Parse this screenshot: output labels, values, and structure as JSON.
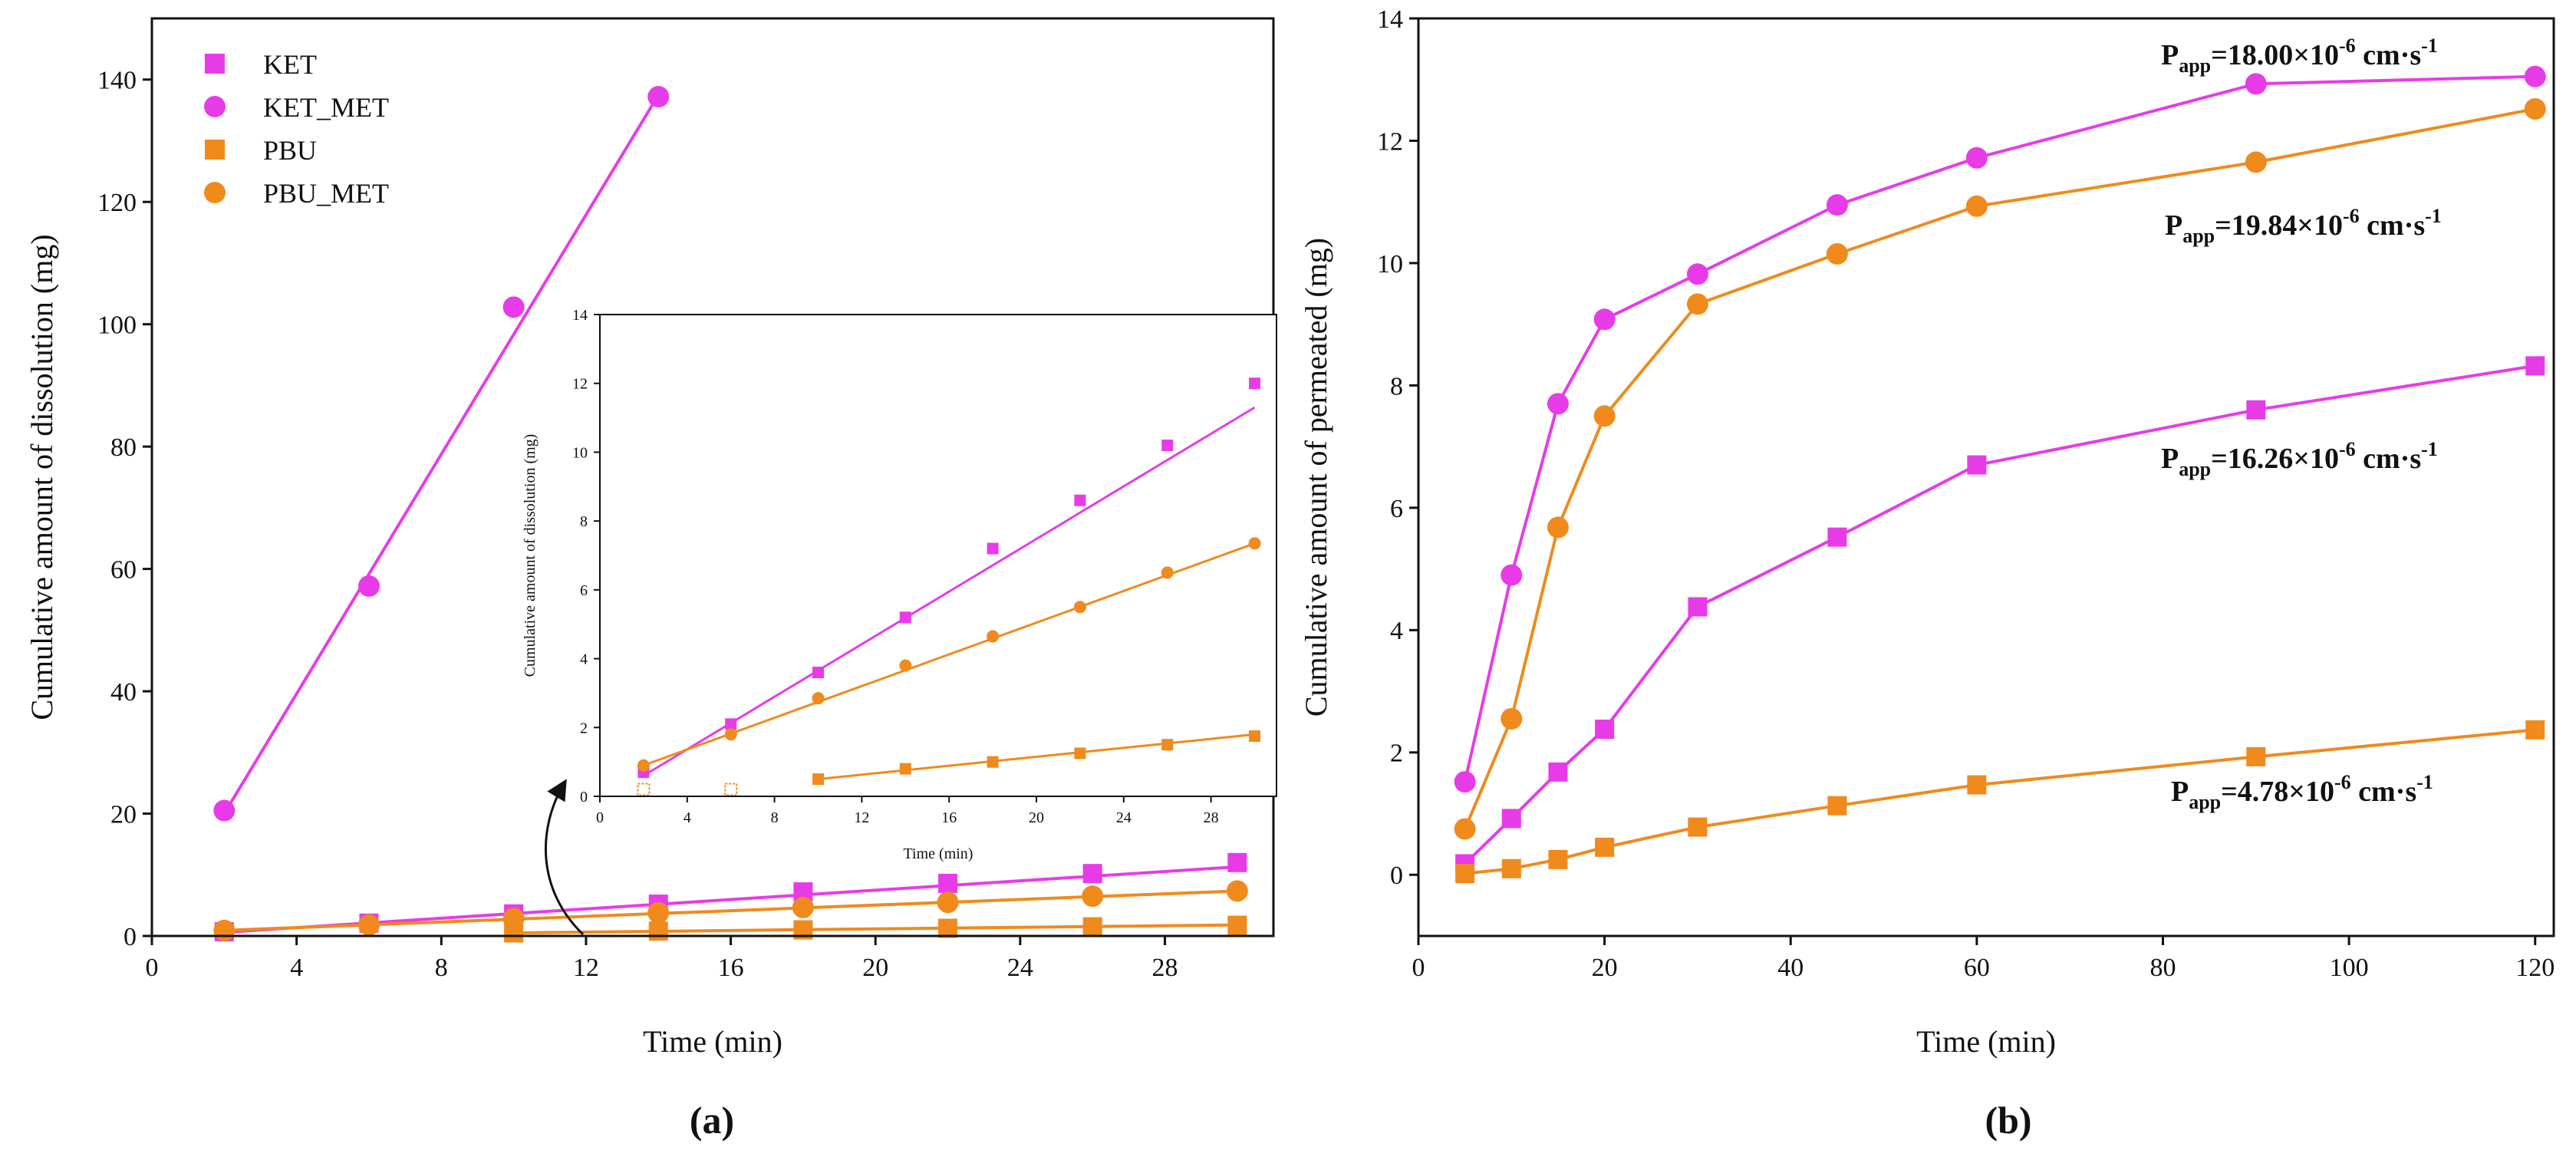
{
  "colors": {
    "ket": "#e83be8",
    "pbu": "#f08a1c",
    "axis": "#111111"
  },
  "chart_data": [
    {
      "id": "a",
      "type": "line",
      "panel_label": "(a)",
      "xlabel": "Time (min)",
      "ylabel": "Cumulative amount of dissolution (mg)",
      "xlim": [
        0,
        31
      ],
      "ylim": [
        0,
        150
      ],
      "xticks": [
        0,
        4,
        8,
        12,
        16,
        20,
        24,
        28
      ],
      "yticks": [
        0,
        20,
        40,
        60,
        80,
        100,
        120,
        140
      ],
      "legend": [
        {
          "label": "KET",
          "marker": "square",
          "color": "ket"
        },
        {
          "label": "KET_MET",
          "marker": "circle",
          "color": "ket"
        },
        {
          "label": "PBU",
          "marker": "square",
          "color": "pbu"
        },
        {
          "label": "PBU_MET",
          "marker": "circle",
          "color": "pbu"
        }
      ],
      "series": [
        {
          "name": "KET",
          "marker": "square",
          "color": "ket",
          "x": [
            2,
            6,
            10,
            14,
            18,
            22,
            26,
            30
          ],
          "y": [
            0.7,
            2.1,
            3.6,
            5.2,
            7.2,
            8.6,
            10.2,
            12.0
          ],
          "fit": [
            [
              2,
              0.6
            ],
            [
              30,
              11.3
            ]
          ]
        },
        {
          "name": "KET_MET",
          "marker": "circle",
          "color": "ket",
          "x": [
            2,
            6,
            10,
            14
          ],
          "y": [
            20.5,
            57.2,
            102.8,
            137.2
          ],
          "fit": [
            [
              2,
              20.0
            ],
            [
              14,
              137.5
            ]
          ]
        },
        {
          "name": "PBU",
          "marker": "square",
          "color": "pbu",
          "x": [
            10,
            14,
            18,
            22,
            26,
            30
          ],
          "y": [
            0.5,
            0.8,
            1.0,
            1.25,
            1.5,
            1.75
          ],
          "fit": [
            [
              10,
              0.5
            ],
            [
              30,
              1.8
            ]
          ]
        },
        {
          "name": "PBU_MET",
          "marker": "circle",
          "color": "pbu",
          "x": [
            2,
            6,
            10,
            14,
            18,
            22,
            26,
            30
          ],
          "y": [
            0.9,
            1.8,
            2.85,
            3.8,
            4.65,
            5.5,
            6.5,
            7.35
          ],
          "fit": [
            [
              2,
              0.9
            ],
            [
              30,
              7.35
            ]
          ]
        }
      ]
    },
    {
      "id": "a-inset",
      "type": "line",
      "xlabel": "Time (min)",
      "ylabel": "Cumulative amount of dissolution (mg)",
      "xlim": [
        0,
        31
      ],
      "ylim": [
        0,
        14
      ],
      "xticks": [
        0,
        4,
        8,
        12,
        16,
        20,
        24,
        28
      ],
      "yticks": [
        0,
        2,
        4,
        6,
        8,
        10,
        12,
        14
      ],
      "series": [
        {
          "name": "KET",
          "marker": "square",
          "color": "ket",
          "x": [
            2,
            6,
            10,
            14,
            18,
            22,
            26,
            30
          ],
          "y": [
            0.7,
            2.1,
            3.6,
            5.2,
            7.2,
            8.6,
            10.2,
            12.0
          ],
          "fit": [
            [
              2,
              0.6
            ],
            [
              30,
              11.3
            ]
          ]
        },
        {
          "name": "PBU",
          "marker": "square",
          "color": "pbu",
          "x": [
            10,
            14,
            18,
            22,
            26,
            30
          ],
          "y": [
            0.5,
            0.8,
            1.0,
            1.25,
            1.5,
            1.75
          ],
          "fit": [
            [
              10,
              0.5
            ],
            [
              30,
              1.8
            ]
          ]
        },
        {
          "name": "PBU_MET",
          "marker": "circle",
          "color": "pbu",
          "x": [
            2,
            6,
            10,
            14,
            18,
            22,
            26,
            30
          ],
          "y": [
            0.9,
            1.8,
            2.85,
            3.8,
            4.65,
            5.5,
            6.5,
            7.35
          ],
          "fit": [
            [
              2,
              0.9
            ],
            [
              30,
              7.35
            ]
          ]
        }
      ],
      "hollow_points": [
        {
          "marker": "square",
          "color": "pbu",
          "x": 2,
          "y": 0.2
        },
        {
          "marker": "square",
          "color": "pbu",
          "x": 6,
          "y": 0.2
        }
      ]
    },
    {
      "id": "b",
      "type": "line",
      "panel_label": "(b)",
      "xlabel": "Time (min)",
      "ylabel": "Cumulative amount of permeated (mg)",
      "xlim": [
        0,
        122
      ],
      "ylim": [
        -1,
        14
      ],
      "xticks": [
        0,
        20,
        40,
        60,
        80,
        100,
        120
      ],
      "yticks": [
        0,
        2,
        4,
        6,
        8,
        10,
        12,
        14
      ],
      "series": [
        {
          "name": "KET_MET",
          "marker": "circle",
          "color": "ket",
          "x": [
            5,
            10,
            15,
            20,
            30,
            45,
            60,
            90,
            120
          ],
          "y": [
            1.52,
            4.9,
            7.7,
            9.08,
            9.82,
            10.95,
            11.72,
            12.93,
            13.05
          ]
        },
        {
          "name": "PBU_MET",
          "marker": "circle",
          "color": "pbu",
          "x": [
            5,
            10,
            15,
            20,
            30,
            45,
            60,
            90,
            120
          ],
          "y": [
            0.75,
            2.55,
            5.68,
            7.5,
            9.33,
            10.15,
            10.93,
            11.65,
            12.52
          ]
        },
        {
          "name": "KET",
          "marker": "square",
          "color": "ket",
          "x": [
            5,
            10,
            15,
            20,
            30,
            45,
            60,
            90,
            120
          ],
          "y": [
            0.18,
            0.92,
            1.68,
            2.38,
            4.38,
            5.52,
            6.7,
            7.6,
            8.32
          ]
        },
        {
          "name": "PBU",
          "marker": "square",
          "color": "pbu",
          "x": [
            5,
            10,
            15,
            20,
            30,
            45,
            60,
            90,
            120
          ],
          "y": [
            0.02,
            0.1,
            0.25,
            0.45,
            0.78,
            1.13,
            1.47,
            1.93,
            2.37
          ]
        }
      ],
      "annotations": [
        {
          "prefix": "P",
          "sub": "app",
          "mid": "=18.00×10",
          "sup": "-6",
          "suffix": " cm·s",
          "suffix_sup": "-1"
        },
        {
          "prefix": "P",
          "sub": "app",
          "mid": "=19.84×10",
          "sup": "-6",
          "suffix": " cm·s",
          "suffix_sup": "-1"
        },
        {
          "prefix": "P",
          "sub": "app",
          "mid": "=16.26×10",
          "sup": "-6",
          "suffix": " cm·s",
          "suffix_sup": "-1"
        },
        {
          "prefix": "P",
          "sub": "app",
          "mid": "=4.78×10",
          "sup": "-6",
          "suffix": " cm·s",
          "suffix_sup": "-1"
        }
      ]
    }
  ]
}
